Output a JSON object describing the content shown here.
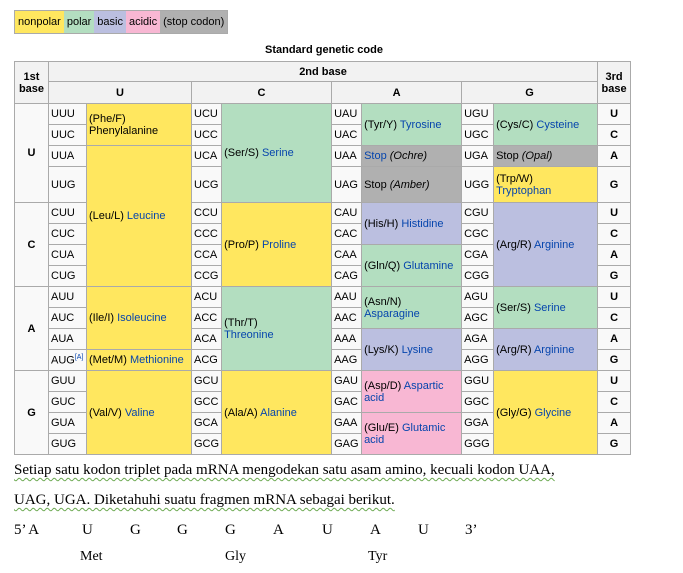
{
  "legend": [
    "nonpolar",
    "polar",
    "basic",
    "acidic",
    "(stop codon)"
  ],
  "table": {
    "caption": "Standard genetic code",
    "first_base_header": "1st base",
    "second_base_header": "2nd base",
    "third_base_header": "3rd base",
    "second_bases": [
      "U",
      "C",
      "A",
      "G"
    ],
    "first_bases": [
      "U",
      "C",
      "A",
      "G"
    ],
    "third_bases": [
      "U",
      "C",
      "A",
      "G"
    ],
    "codons": {
      "U": [
        [
          "UUU",
          "UCU",
          "UAU",
          "UGU"
        ],
        [
          "UUC",
          "UCC",
          "UAC",
          "UGC"
        ],
        [
          "UUA",
          "UCA",
          "UAA",
          "UGA"
        ],
        [
          "UUG",
          "UCG",
          "UAG",
          "UGG"
        ]
      ],
      "C": [
        [
          "CUU",
          "CCU",
          "CAU",
          "CGU"
        ],
        [
          "CUC",
          "CCC",
          "CAC",
          "CGC"
        ],
        [
          "CUA",
          "CCA",
          "CAA",
          "CGA"
        ],
        [
          "CUG",
          "CCG",
          "CAG",
          "CGG"
        ]
      ],
      "A": [
        [
          "AUU",
          "ACU",
          "AAU",
          "AGU"
        ],
        [
          "AUC",
          "ACC",
          "AAC",
          "AGC"
        ],
        [
          "AUA",
          "ACA",
          "AAA",
          "AGA"
        ],
        [
          "AUG",
          "ACG",
          "AAG",
          "AGG"
        ]
      ],
      "G": [
        [
          "GUU",
          "GCU",
          "GAU",
          "GGU"
        ],
        [
          "GUC",
          "GCC",
          "GAC",
          "GGC"
        ],
        [
          "GUA",
          "GCA",
          "GAA",
          "GGA"
        ],
        [
          "GUG",
          "GCG",
          "GAG",
          "GGG"
        ]
      ]
    },
    "footnote_mark": "[A]",
    "aa": {
      "phe_abbr": "(Phe/F)",
      "phe_name": "Phenylalanine",
      "leu_abbr": "(Leu/L)",
      "leu_name": "Leucine",
      "ser1_abbr": "(Ser/S)",
      "ser1_name": "Serine",
      "tyr_abbr": "(Tyr/Y)",
      "tyr_name": "Tyrosine",
      "cys_abbr": "(Cys/C)",
      "cys_name": "Cysteine",
      "stop_ochre_word": "Stop",
      "stop_ochre_name": "(Ochre)",
      "stop_amber_word": "Stop",
      "stop_amber_name": "(Amber)",
      "stop_opal_word": "Stop",
      "stop_opal_name": "(Opal)",
      "trp_abbr": "(Trp/W)",
      "trp_name": "Tryptophan",
      "pro_abbr": "(Pro/P)",
      "pro_name": "Proline",
      "his_abbr": "(His/H)",
      "his_name": "Histidine",
      "gln_abbr": "(Gln/Q)",
      "gln_name": "Glutamine",
      "arg1_abbr": "(Arg/R)",
      "arg1_name": "Arginine",
      "ile_abbr": "(Ile/I)",
      "ile_name": "Isoleucine",
      "met_abbr": "(Met/M)",
      "met_name": "Methionine",
      "thr_abbr": "(Thr/T)",
      "thr_name": "Threonine",
      "asn_abbr": "(Asn/N)",
      "asn_name": "Asparagine",
      "lys_abbr": "(Lys/K)",
      "lys_name": "Lysine",
      "ser2_abbr": "(Ser/S)",
      "ser2_name": "Serine",
      "arg2_abbr": "(Arg/R)",
      "arg2_name": "Arginine",
      "val_abbr": "(Val/V)",
      "val_name": "Valine",
      "ala_abbr": "(Ala/A)",
      "ala_name": "Alanine",
      "asp_abbr": "(Asp/D)",
      "asp_name": "Aspartic acid",
      "glu_abbr": "(Glu/E)",
      "glu_name": "Glutamic acid",
      "gly_abbr": "(Gly/G)",
      "gly_name": "Glycine"
    }
  },
  "text": {
    "line1": "Setiap satu kodon triplet pada mRNA mengodekan satu asam amino, kecuali kodon UAA,",
    "line2": "UAG, UGA. Diketahuhi suatu fragmen mRNA sebagai berikut.",
    "sequence": [
      "5’ A",
      "U",
      "G",
      "G",
      "G",
      "A",
      "U",
      "A",
      "U",
      "3’"
    ],
    "amino_acids": [
      "Met",
      "Gly",
      "Tyr"
    ]
  }
}
